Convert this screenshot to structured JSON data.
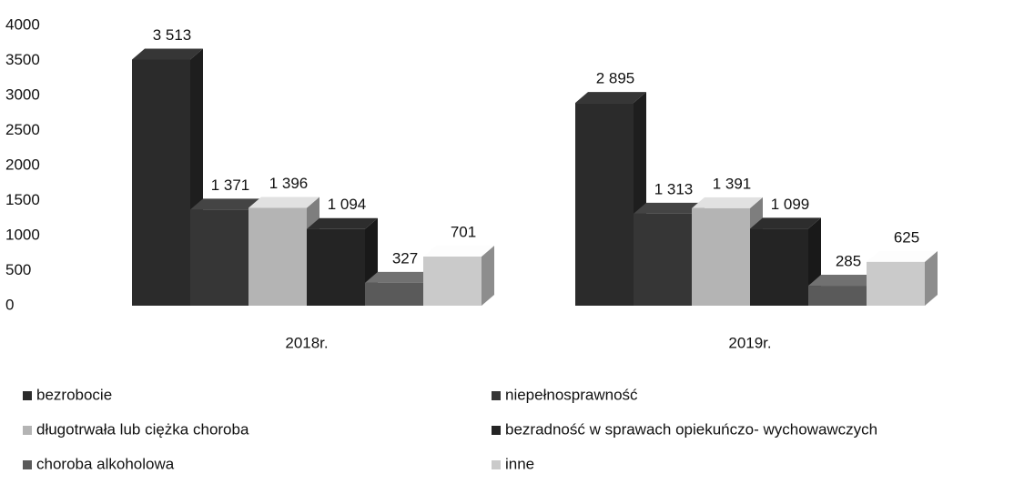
{
  "chart_data": {
    "type": "bar3d",
    "categories": [
      "2018r.",
      "2019r."
    ],
    "series": [
      {
        "name": "bezrobocie",
        "color": "#2b2b2b",
        "values": [
          3513,
          2895
        ],
        "value_labels": [
          "3 513",
          "2 895"
        ]
      },
      {
        "name": "niepełnosprawność",
        "color": "#363636",
        "values": [
          1371,
          1313
        ],
        "value_labels": [
          "1 371",
          "1 313"
        ]
      },
      {
        "name": "długotrwała lub ciężka choroba",
        "color": "#b4b4b4",
        "values": [
          1396,
          1391
        ],
        "value_labels": [
          "1 396",
          "1 391"
        ]
      },
      {
        "name": "bezradność w sprawach opiekuńczo- wychowawczych",
        "color": "#242424",
        "values": [
          1094,
          1099
        ],
        "value_labels": [
          "1 094",
          "1 099"
        ]
      },
      {
        "name": "choroba alkoholowa",
        "color": "#5a5a5a",
        "values": [
          327,
          285
        ]
      },
      {
        "name": "inne",
        "color": "#cacaca",
        "values": [
          701,
          625
        ]
      }
    ],
    "ylim": [
      0,
      4000
    ],
    "yticks": [
      0,
      500,
      1000,
      1500,
      2000,
      2500,
      3000,
      3500,
      4000
    ]
  }
}
